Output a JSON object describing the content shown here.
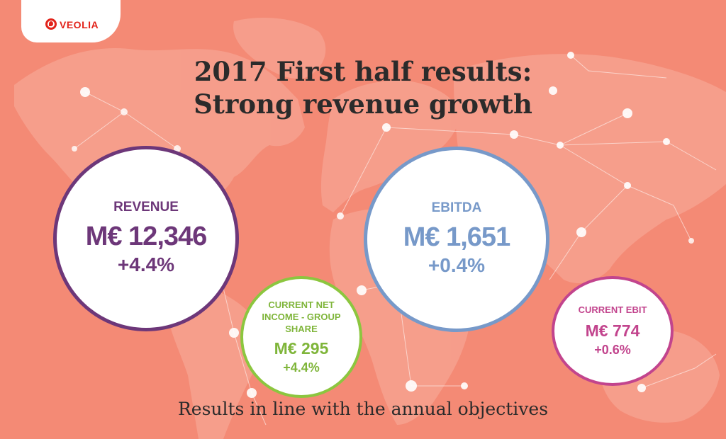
{
  "logo": {
    "text": "VEOLIA",
    "icon": "veolia-drop-icon",
    "color": "#e2231a"
  },
  "title": {
    "line1": "2017 First half results:",
    "line2": "Strong revenue growth"
  },
  "metrics": {
    "revenue": {
      "label": "REVENUE",
      "value": "M€ 12,346",
      "change": "+4.4%",
      "color": "#6d3779"
    },
    "ebitda": {
      "label": "EBITDA",
      "value": "M€ 1,651",
      "change": "+0.4%",
      "color": "#7799c9"
    },
    "net_income": {
      "label_line1": "CURRENT NET",
      "label_line2": "INCOME - GROUP",
      "label_line3": "SHARE",
      "value": "M€ 295",
      "change": "+4.4%",
      "color": "#8cc63f"
    },
    "ebit": {
      "label": "CURRENT EBIT",
      "value": "M€ 774",
      "change": "+0.6%",
      "color": "#c2448d"
    }
  },
  "subtitle": "Results in line with the annual objectives",
  "background": {
    "color": "#f48a75",
    "map_color": "#f7a493",
    "node_color": "#ffffff"
  }
}
